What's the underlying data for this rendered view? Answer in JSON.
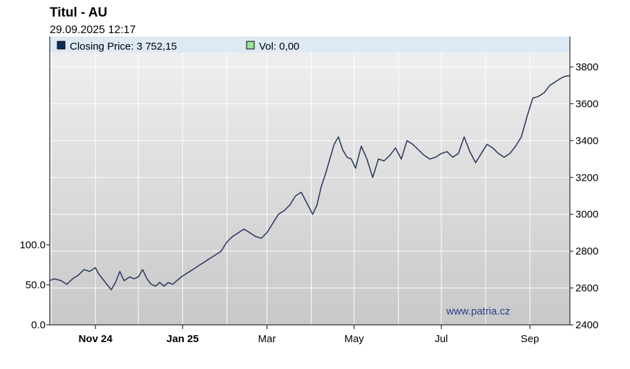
{
  "title": "Titul - AU",
  "timestamp": "29.09.2025 12:17",
  "watermark": "www.patria.cz",
  "legend": [
    {
      "label": "Closing Price: 3 752,15",
      "color": "#0d2c54"
    },
    {
      "label": "Vol: 0,00",
      "color": "#99e699"
    }
  ],
  "chart_data": {
    "type": "line",
    "title": "Titul - AU",
    "x_ticks": [
      {
        "date": "2024-11-01",
        "label": "Nov 24",
        "bold": true
      },
      {
        "date": "2025-01-01",
        "label": "Jan 25",
        "bold": true
      },
      {
        "date": "2025-03-01",
        "label": "Mar",
        "bold": false
      },
      {
        "date": "2025-05-01",
        "label": "May",
        "bold": false
      },
      {
        "date": "2025-07-01",
        "label": "Jul",
        "bold": false
      },
      {
        "date": "2025-09-01",
        "label": "Sep",
        "bold": false
      }
    ],
    "xlim": [
      "2024-09-30",
      "2025-09-29"
    ],
    "price_axis": {
      "ylim": [
        2400,
        3800
      ],
      "ticks": [
        2400,
        2600,
        2800,
        3000,
        3200,
        3400,
        3600,
        3800
      ],
      "side": "right"
    },
    "volume_axis": {
      "ylim": [
        0,
        100
      ],
      "ticks": [
        "0.0",
        "50.0",
        "100.0"
      ],
      "side": "left"
    },
    "grid": true,
    "series": [
      {
        "name": "Closing Price",
        "color": "#2b3a5e",
        "x": [
          "2024-09-30",
          "2024-10-03",
          "2024-10-08",
          "2024-10-12",
          "2024-10-16",
          "2024-10-20",
          "2024-10-24",
          "2024-10-28",
          "2024-11-01",
          "2024-11-03",
          "2024-11-06",
          "2024-11-09",
          "2024-11-12",
          "2024-11-15",
          "2024-11-18",
          "2024-11-21",
          "2024-11-25",
          "2024-11-28",
          "2024-12-01",
          "2024-12-04",
          "2024-12-07",
          "2024-12-10",
          "2024-12-13",
          "2024-12-16",
          "2024-12-19",
          "2024-12-22",
          "2024-12-25",
          "2024-12-28",
          "2024-12-31",
          "2025-01-04",
          "2025-01-08",
          "2025-01-12",
          "2025-01-16",
          "2025-01-20",
          "2025-01-24",
          "2025-01-28",
          "2025-02-01",
          "2025-02-05",
          "2025-02-09",
          "2025-02-13",
          "2025-02-17",
          "2025-02-21",
          "2025-02-25",
          "2025-03-01",
          "2025-03-05",
          "2025-03-09",
          "2025-03-13",
          "2025-03-17",
          "2025-03-21",
          "2025-03-25",
          "2025-03-29",
          "2025-04-02",
          "2025-04-05",
          "2025-04-08",
          "2025-04-11",
          "2025-04-14",
          "2025-04-17",
          "2025-04-20",
          "2025-04-23",
          "2025-04-26",
          "2025-04-29",
          "2025-05-02",
          "2025-05-06",
          "2025-05-10",
          "2025-05-14",
          "2025-05-18",
          "2025-05-22",
          "2025-05-26",
          "2025-05-30",
          "2025-06-03",
          "2025-06-07",
          "2025-06-11",
          "2025-06-15",
          "2025-06-19",
          "2025-06-23",
          "2025-06-27",
          "2025-07-01",
          "2025-07-05",
          "2025-07-09",
          "2025-07-13",
          "2025-07-17",
          "2025-07-21",
          "2025-07-25",
          "2025-07-29",
          "2025-08-02",
          "2025-08-06",
          "2025-08-10",
          "2025-08-14",
          "2025-08-18",
          "2025-08-22",
          "2025-08-26",
          "2025-08-30",
          "2025-09-03",
          "2025-09-07",
          "2025-09-11",
          "2025-09-15",
          "2025-09-19",
          "2025-09-23",
          "2025-09-26",
          "2025-09-29"
        ],
        "values": [
          2640,
          2650,
          2640,
          2620,
          2650,
          2670,
          2700,
          2690,
          2710,
          2680,
          2650,
          2620,
          2590,
          2630,
          2690,
          2640,
          2660,
          2650,
          2660,
          2700,
          2650,
          2620,
          2610,
          2630,
          2610,
          2630,
          2620,
          2640,
          2660,
          2680,
          2700,
          2720,
          2740,
          2760,
          2780,
          2800,
          2850,
          2880,
          2900,
          2920,
          2900,
          2880,
          2870,
          2900,
          2950,
          3000,
          3020,
          3050,
          3100,
          3120,
          3060,
          3000,
          3050,
          3150,
          3220,
          3300,
          3380,
          3420,
          3350,
          3310,
          3300,
          3250,
          3370,
          3300,
          3200,
          3300,
          3290,
          3320,
          3360,
          3300,
          3400,
          3380,
          3350,
          3320,
          3300,
          3310,
          3330,
          3340,
          3310,
          3330,
          3420,
          3340,
          3280,
          3330,
          3380,
          3360,
          3330,
          3310,
          3330,
          3370,
          3420,
          3530,
          3630,
          3640,
          3660,
          3700,
          3720,
          3740,
          3750,
          3752
        ]
      },
      {
        "name": "Vol",
        "color": "#99e699",
        "values": []
      }
    ]
  }
}
